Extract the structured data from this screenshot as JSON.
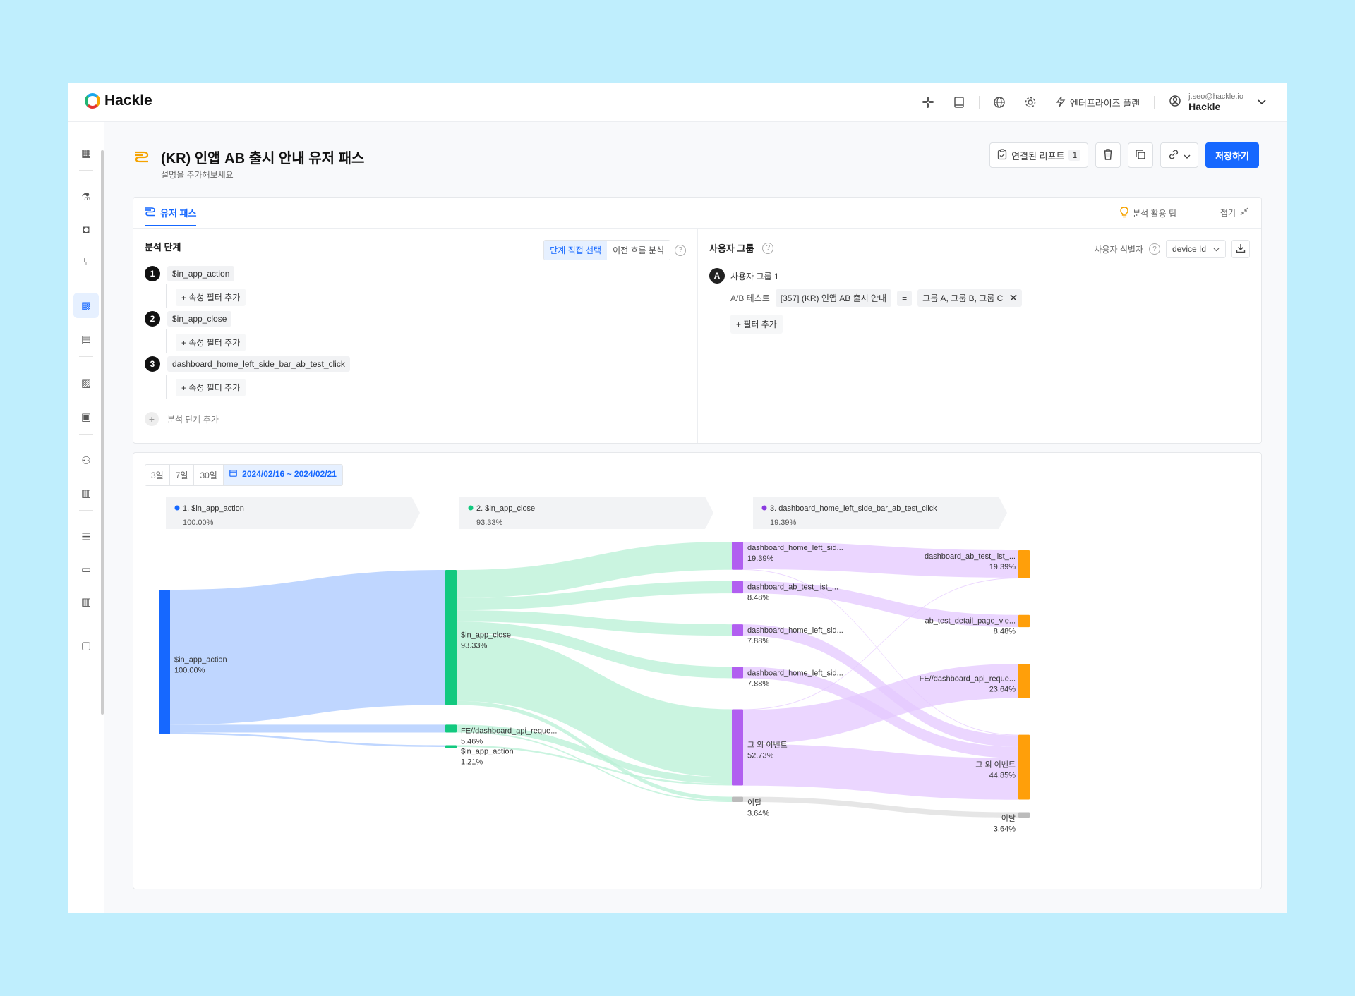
{
  "app": {
    "brand": "Hackle"
  },
  "topbar": {
    "plan_label": "엔터프라이즈 플랜",
    "user_email": "j.seo@hackle.io",
    "user_name": "Hackle"
  },
  "header": {
    "title": "(KR) 인앱 AB 출시 안내 유저 패스",
    "description": "설명을 추가해보세요",
    "linked_reports_label": "연결된 리포트",
    "linked_reports_count": "1",
    "save_label": "저장하기"
  },
  "config": {
    "tab_label": "유저 패스",
    "tips_label": "분석 활용 팁",
    "fold_label": "접기",
    "steps_title": "분석 단계",
    "mode_options": [
      "단계 직접 선택",
      "이전 흐름 분석"
    ],
    "mode_selected": "단계 직접 선택",
    "steps": [
      {
        "num": "1",
        "event": "$in_app_action",
        "filter_label": "+ 속성 필터 추가"
      },
      {
        "num": "2",
        "event": "$in_app_close",
        "filter_label": "+ 속성 필터 추가"
      },
      {
        "num": "3",
        "event": "dashboard_home_left_side_bar_ab_test_click",
        "filter_label": "+ 속성 필터 추가"
      }
    ],
    "add_step_label": "분석 단계 추가",
    "user_group_title": "사용자 그룹",
    "identifier_label": "사용자 식별자",
    "identifier_value": "device Id",
    "group": {
      "badge": "A",
      "name": "사용자 그룹 1",
      "cond_type": "A/B 테스트",
      "cond_target": "[357] (KR) 인앱 AB 출시 안내",
      "cond_op": "=",
      "cond_value": "그룹 A, 그룹 B, 그룹 C",
      "add_filter_label": "+ 필터 추가"
    }
  },
  "date_range": {
    "options": [
      "3일",
      "7일",
      "30일"
    ],
    "range": "2024/02/16 ~ 2024/02/21"
  },
  "chart_data": {
    "type": "sankey",
    "steps": [
      {
        "label": "1. $in_app_action",
        "pct": "100.00%",
        "color": "#1668ff"
      },
      {
        "label": "2. $in_app_close",
        "pct": "93.33%",
        "color": "#12c97f"
      },
      {
        "label": "3. dashboard_home_left_side_bar_ab_test_click",
        "pct": "19.39%",
        "color": "#8a3be0"
      }
    ],
    "nodes": [
      {
        "id": "a1",
        "col": 0,
        "label": "$in_app_action",
        "value": 100.0,
        "pct": "100.00%",
        "color": "#1668ff"
      },
      {
        "id": "b1",
        "col": 1,
        "label": "$in_app_close",
        "value": 93.33,
        "pct": "93.33%",
        "color": "#12c97f"
      },
      {
        "id": "b2",
        "col": 1,
        "label": "FE//dashboard_api_reque...",
        "value": 5.46,
        "pct": "5.46%",
        "color": "#12c97f"
      },
      {
        "id": "b3",
        "col": 1,
        "label": "$in_app_action",
        "value": 1.21,
        "pct": "1.21%",
        "color": "#12c97f"
      },
      {
        "id": "c1",
        "col": 2,
        "label": "dashboard_home_left_sid...",
        "value": 19.39,
        "pct": "19.39%",
        "color": "#b15ff0"
      },
      {
        "id": "c2",
        "col": 2,
        "label": "dashboard_ab_test_list_...",
        "value": 8.48,
        "pct": "8.48%",
        "color": "#b15ff0"
      },
      {
        "id": "c3",
        "col": 2,
        "label": "dashboard_home_left_sid...",
        "value": 7.88,
        "pct": "7.88%",
        "color": "#b15ff0"
      },
      {
        "id": "c4",
        "col": 2,
        "label": "dashboard_home_left_sid...",
        "value": 7.88,
        "pct": "7.88%",
        "color": "#b15ff0"
      },
      {
        "id": "c5",
        "col": 2,
        "label": "그 외 이벤트",
        "value": 52.73,
        "pct": "52.73%",
        "color": "#b15ff0"
      },
      {
        "id": "c6",
        "col": 2,
        "label": "이탈",
        "value": 3.64,
        "pct": "3.64%",
        "color": "#bbbbbb"
      },
      {
        "id": "d1",
        "col": 3,
        "label": "dashboard_ab_test_list_...",
        "value": 19.39,
        "pct": "19.39%",
        "color": "#ff9f0a"
      },
      {
        "id": "d2",
        "col": 3,
        "label": "ab_test_detail_page_vie...",
        "value": 8.48,
        "pct": "8.48%",
        "color": "#ff9f0a"
      },
      {
        "id": "d3",
        "col": 3,
        "label": "FE//dashboard_api_reque...",
        "value": 23.64,
        "pct": "23.64%",
        "color": "#ff9f0a"
      },
      {
        "id": "d4",
        "col": 3,
        "label": "그 외 이벤트",
        "value": 44.85,
        "pct": "44.85%",
        "color": "#ff9f0a"
      },
      {
        "id": "d5",
        "col": 3,
        "label": "이탈",
        "value": 3.64,
        "pct": "3.64%",
        "color": "#bbbbbb"
      }
    ],
    "links": [
      {
        "source": "a1",
        "target": "b1",
        "value": 93.33
      },
      {
        "source": "a1",
        "target": "b2",
        "value": 5.46
      },
      {
        "source": "a1",
        "target": "b3",
        "value": 1.21
      },
      {
        "source": "b1",
        "target": "c1",
        "value": 19.39
      },
      {
        "source": "b1",
        "target": "c2",
        "value": 8.48
      },
      {
        "source": "b1",
        "target": "c3",
        "value": 7.88
      },
      {
        "source": "b1",
        "target": "c4",
        "value": 7.88
      },
      {
        "source": "b1",
        "target": "c5",
        "value": 47.0
      },
      {
        "source": "b1",
        "target": "c6",
        "value": 2.7
      },
      {
        "source": "b2",
        "target": "c5",
        "value": 4.5
      },
      {
        "source": "b2",
        "target": "c6",
        "value": 0.96
      },
      {
        "source": "b3",
        "target": "c5",
        "value": 1.21
      },
      {
        "source": "c1",
        "target": "d1",
        "value": 19.0
      },
      {
        "source": "c1",
        "target": "d4",
        "value": 0.39
      },
      {
        "source": "c2",
        "target": "d2",
        "value": 8.48
      },
      {
        "source": "c3",
        "target": "d4",
        "value": 7.88
      },
      {
        "source": "c4",
        "target": "d4",
        "value": 7.88
      },
      {
        "source": "c5",
        "target": "d1",
        "value": 0.39
      },
      {
        "source": "c5",
        "target": "d3",
        "value": 23.64
      },
      {
        "source": "c5",
        "target": "d4",
        "value": 28.7
      },
      {
        "source": "c6",
        "target": "d5",
        "value": 3.64
      }
    ]
  },
  "icon_names": [
    "slack-icon",
    "book-icon",
    "globe-icon",
    "gear-icon",
    "bolt-icon",
    "user-circle-icon",
    "chevron-down-icon",
    "trash-icon",
    "copy-icon",
    "link-icon",
    "download-icon",
    "bulb-icon",
    "collapse-icon",
    "calendar-icon"
  ]
}
